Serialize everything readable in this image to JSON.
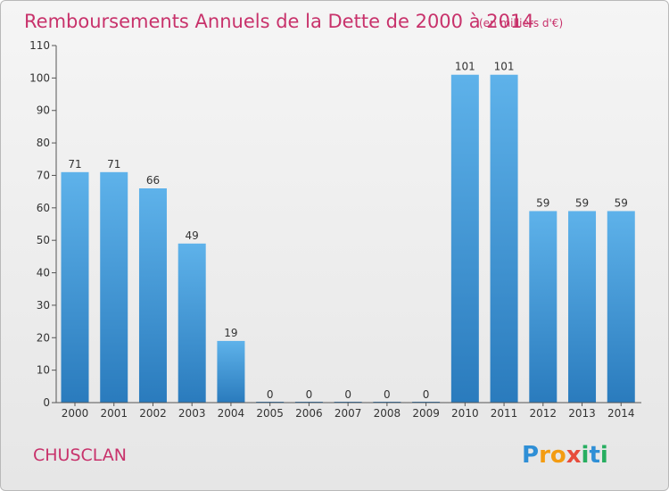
{
  "chart_data": {
    "type": "bar",
    "title": "Remboursements Annuels de la Dette de 2000 à 2014",
    "subtitle": "(en milliers d'€)",
    "categories": [
      "2000",
      "2001",
      "2002",
      "2003",
      "2004",
      "2005",
      "2006",
      "2007",
      "2008",
      "2009",
      "2010",
      "2011",
      "2012",
      "2013",
      "2014"
    ],
    "values": [
      71,
      71,
      66,
      49,
      19,
      0,
      0,
      0,
      0,
      0,
      101,
      101,
      59,
      59,
      59
    ],
    "ylim": [
      0,
      110
    ],
    "yticks": [
      0,
      10,
      20,
      30,
      40,
      50,
      60,
      70,
      80,
      90,
      100,
      110
    ],
    "grid": false,
    "colors": {
      "bar_light": "#5eb2ea",
      "bar_dark": "#2a7bbd",
      "title": "#c8326b"
    }
  },
  "commune": "CHUSCLAN",
  "logo": {
    "text": "Proxiti",
    "letters": [
      {
        "ch": "P",
        "color": "#2f8fd6"
      },
      {
        "ch": "r",
        "color": "#f39c12"
      },
      {
        "ch": "o",
        "color": "#f39c12"
      },
      {
        "ch": "x",
        "color": "#e74c3c"
      },
      {
        "ch": "i",
        "color": "#27ae60"
      },
      {
        "ch": "t",
        "color": "#2f8fd6"
      },
      {
        "ch": "i",
        "color": "#27ae60"
      }
    ]
  }
}
